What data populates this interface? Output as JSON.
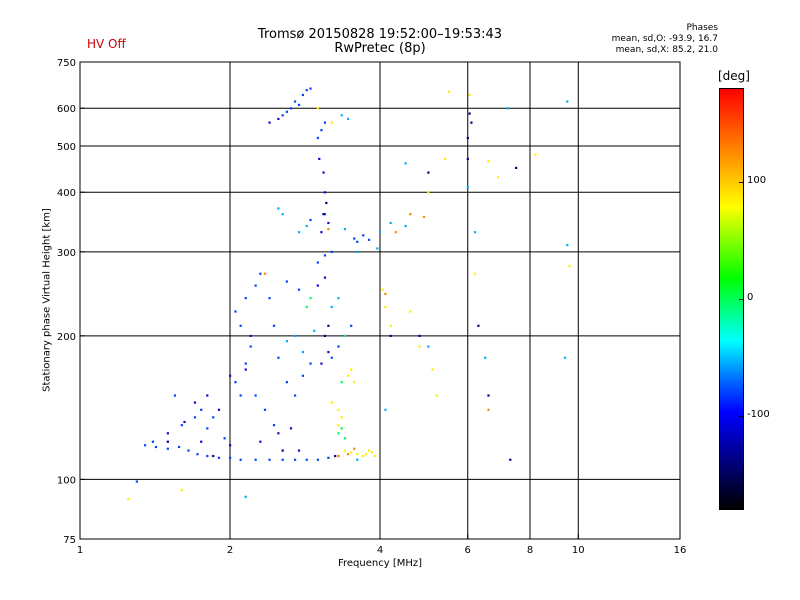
{
  "header": {
    "hv_status": "HV Off",
    "title_line1": "Tromsø 20150828 19:52:00–19:53:43",
    "title_line2": "RwPretec (8p)",
    "phases_title": "Phases",
    "phases_line1": "mean, sd,O: -93.9, 16.7",
    "phases_line2": "mean, sd,X: 85.2, 21.0"
  },
  "colorbar": {
    "label": "[deg]",
    "ticks": [
      {
        "value": 100,
        "label": "100"
      },
      {
        "value": 0,
        "label": "0"
      },
      {
        "value": -100,
        "label": "-100"
      }
    ],
    "range": [
      -180,
      180
    ],
    "colors": [
      "#ff0000",
      "#ff8000",
      "#ffff00",
      "#00ff00",
      "#00ffff",
      "#0060ff",
      "#0000ff",
      "#000000"
    ]
  },
  "chart_data": {
    "type": "scatter",
    "title": "Tromsø 20150828 19:52:00–19:53:43",
    "subtitle": "RwPretec (8p)",
    "xlabel": "Frequency [MHz]",
    "ylabel": "Stationary phase Virtual Height [km]",
    "xscale": "log",
    "yscale": "log",
    "xlim": [
      1,
      16
    ],
    "ylim": [
      75,
      750
    ],
    "x_ticks": [
      1,
      2,
      4,
      6,
      8,
      10,
      16
    ],
    "x_tick_labels": [
      "1",
      "2",
      "4",
      "6",
      "8",
      "10",
      "16"
    ],
    "y_ticks": [
      75,
      100,
      200,
      300,
      400,
      500,
      600,
      750
    ],
    "y_tick_labels": [
      "75",
      "100",
      "200",
      "300",
      "400",
      "500",
      "600",
      "750"
    ],
    "x_grid": [
      2,
      4,
      6,
      8,
      10
    ],
    "y_grid": [
      100,
      200,
      300,
      400,
      500,
      600
    ],
    "grid": true,
    "series": [
      {
        "color": "#0044ff",
        "points": [
          [
            1.35,
            118
          ],
          [
            1.42,
            117
          ],
          [
            1.5,
            116
          ],
          [
            1.58,
            117
          ],
          [
            1.65,
            115
          ],
          [
            1.72,
            113
          ],
          [
            1.8,
            112
          ],
          [
            1.9,
            111
          ],
          [
            2.0,
            111
          ],
          [
            2.1,
            110
          ],
          [
            2.25,
            110
          ],
          [
            2.4,
            110
          ],
          [
            2.55,
            110
          ],
          [
            2.7,
            110
          ],
          [
            2.85,
            110
          ],
          [
            3.0,
            110
          ],
          [
            3.15,
            111
          ],
          [
            3.3,
            112
          ],
          [
            1.6,
            130
          ],
          [
            1.7,
            135
          ],
          [
            1.8,
            128
          ],
          [
            1.95,
            122
          ],
          [
            2.05,
            160
          ],
          [
            2.1,
            150
          ],
          [
            2.15,
            175
          ],
          [
            2.2,
            190
          ],
          [
            2.1,
            210
          ],
          [
            2.05,
            225
          ],
          [
            2.15,
            240
          ],
          [
            2.25,
            255
          ],
          [
            2.3,
            270
          ],
          [
            2.4,
            240
          ],
          [
            2.45,
            210
          ],
          [
            2.5,
            180
          ],
          [
            2.6,
            160
          ],
          [
            2.7,
            150
          ],
          [
            2.8,
            165
          ],
          [
            2.9,
            175
          ],
          [
            2.6,
            260
          ],
          [
            2.75,
            250
          ],
          [
            3.2,
            180
          ],
          [
            3.3,
            190
          ],
          [
            3.4,
            200
          ],
          [
            3.5,
            210
          ],
          [
            3.55,
            320
          ],
          [
            3.6,
            315
          ],
          [
            3.7,
            325
          ],
          [
            3.8,
            318
          ],
          [
            3.0,
            285
          ],
          [
            3.1,
            295
          ],
          [
            3.2,
            300
          ],
          [
            2.55,
            580
          ],
          [
            2.6,
            590
          ],
          [
            2.7,
            620
          ],
          [
            2.8,
            640
          ],
          [
            2.85,
            655
          ],
          [
            2.9,
            660
          ],
          [
            2.65,
            600
          ],
          [
            2.75,
            610
          ],
          [
            3.0,
            520
          ],
          [
            3.05,
            540
          ],
          [
            3.1,
            560
          ],
          [
            2.9,
            350
          ],
          [
            3.1,
            360
          ],
          [
            1.3,
            99
          ],
          [
            1.4,
            120
          ],
          [
            1.55,
            150
          ],
          [
            1.75,
            140
          ],
          [
            2.25,
            150
          ],
          [
            2.35,
            140
          ],
          [
            2.45,
            130
          ],
          [
            1.85,
            135
          ]
        ]
      },
      {
        "color": "#2200cc",
        "points": [
          [
            1.5,
            125
          ],
          [
            1.62,
            132
          ],
          [
            1.75,
            120
          ],
          [
            1.9,
            140
          ],
          [
            2.0,
            118
          ],
          [
            2.3,
            120
          ],
          [
            2.5,
            125
          ],
          [
            2.65,
            128
          ],
          [
            2.75,
            115
          ],
          [
            3.05,
            175
          ],
          [
            3.15,
            185
          ],
          [
            3.0,
            255
          ],
          [
            3.1,
            265
          ],
          [
            3.05,
            330
          ],
          [
            3.15,
            345
          ],
          [
            3.02,
            470
          ],
          [
            3.08,
            440
          ],
          [
            3.1,
            400
          ],
          [
            2.4,
            560
          ],
          [
            2.5,
            570
          ],
          [
            1.7,
            145
          ],
          [
            1.8,
            150
          ],
          [
            2.0,
            165
          ],
          [
            2.2,
            200
          ],
          [
            2.15,
            170
          ]
        ]
      },
      {
        "color": "#00aaff",
        "points": [
          [
            2.6,
            195
          ],
          [
            2.7,
            200
          ],
          [
            2.8,
            185
          ],
          [
            2.95,
            205
          ],
          [
            3.2,
            230
          ],
          [
            3.3,
            240
          ],
          [
            3.4,
            335
          ],
          [
            3.6,
            300
          ],
          [
            2.75,
            330
          ],
          [
            2.85,
            340
          ],
          [
            3.35,
            580
          ],
          [
            3.45,
            570
          ],
          [
            2.5,
            370
          ],
          [
            2.55,
            360
          ],
          [
            3.95,
            305
          ],
          [
            4.0,
            330
          ],
          [
            4.2,
            345
          ],
          [
            4.5,
            340
          ],
          [
            6.0,
            410
          ],
          [
            6.2,
            330
          ],
          [
            7.2,
            600
          ],
          [
            9.5,
            620
          ],
          [
            9.5,
            310
          ],
          [
            4.5,
            460
          ],
          [
            5.0,
            190
          ],
          [
            6.5,
            180
          ],
          [
            9.4,
            180
          ],
          [
            4.1,
            140
          ],
          [
            2.15,
            92
          ],
          [
            3.6,
            110
          ]
        ]
      },
      {
        "color": "#ffee00",
        "points": [
          [
            3.4,
            115
          ],
          [
            3.5,
            114
          ],
          [
            3.6,
            113
          ],
          [
            3.7,
            112
          ],
          [
            3.75,
            113
          ],
          [
            3.8,
            115
          ],
          [
            3.85,
            114
          ],
          [
            3.9,
            112
          ],
          [
            3.3,
            130
          ],
          [
            3.35,
            135
          ],
          [
            3.45,
            165
          ],
          [
            3.5,
            170
          ],
          [
            3.2,
            145
          ],
          [
            3.3,
            140
          ],
          [
            4.05,
            250
          ],
          [
            4.1,
            230
          ],
          [
            4.2,
            210
          ],
          [
            4.6,
            225
          ],
          [
            5.0,
            400
          ],
          [
            5.2,
            150
          ],
          [
            5.4,
            470
          ],
          [
            5.5,
            650
          ],
          [
            6.05,
            640
          ],
          [
            6.2,
            270
          ],
          [
            6.6,
            465
          ],
          [
            6.9,
            430
          ],
          [
            8.2,
            480
          ],
          [
            9.6,
            280
          ],
          [
            3.0,
            600
          ],
          [
            3.2,
            560
          ],
          [
            1.6,
            95
          ],
          [
            1.25,
            91
          ],
          [
            3.55,
            160
          ],
          [
            4.8,
            190
          ],
          [
            5.1,
            170
          ]
        ]
      },
      {
        "color": "#ff8800",
        "points": [
          [
            3.3,
            112
          ],
          [
            3.45,
            113
          ],
          [
            3.55,
            116
          ],
          [
            4.1,
            245
          ],
          [
            4.3,
            330
          ],
          [
            4.6,
            360
          ],
          [
            2.35,
            270
          ],
          [
            6.6,
            140
          ],
          [
            3.15,
            335
          ],
          [
            4.9,
            355
          ]
        ]
      },
      {
        "color": "#000088",
        "points": [
          [
            1.5,
            120
          ],
          [
            1.85,
            112
          ],
          [
            2.55,
            115
          ],
          [
            3.25,
            112
          ],
          [
            3.1,
            200
          ],
          [
            3.15,
            210
          ],
          [
            3.12,
            380
          ],
          [
            3.08,
            360
          ],
          [
            4.2,
            200
          ],
          [
            4.8,
            200
          ],
          [
            5.0,
            440
          ],
          [
            6.0,
            470
          ],
          [
            6.0,
            520
          ],
          [
            6.05,
            585
          ],
          [
            6.1,
            560
          ],
          [
            6.6,
            150
          ],
          [
            7.3,
            110
          ],
          [
            7.5,
            450
          ],
          [
            6.3,
            210
          ]
        ]
      },
      {
        "color": "#00ff66",
        "points": [
          [
            3.3,
            125
          ],
          [
            3.35,
            128
          ],
          [
            3.4,
            122
          ],
          [
            2.9,
            240
          ],
          [
            2.85,
            230
          ],
          [
            3.4,
            200
          ],
          [
            3.35,
            160
          ]
        ]
      }
    ]
  }
}
